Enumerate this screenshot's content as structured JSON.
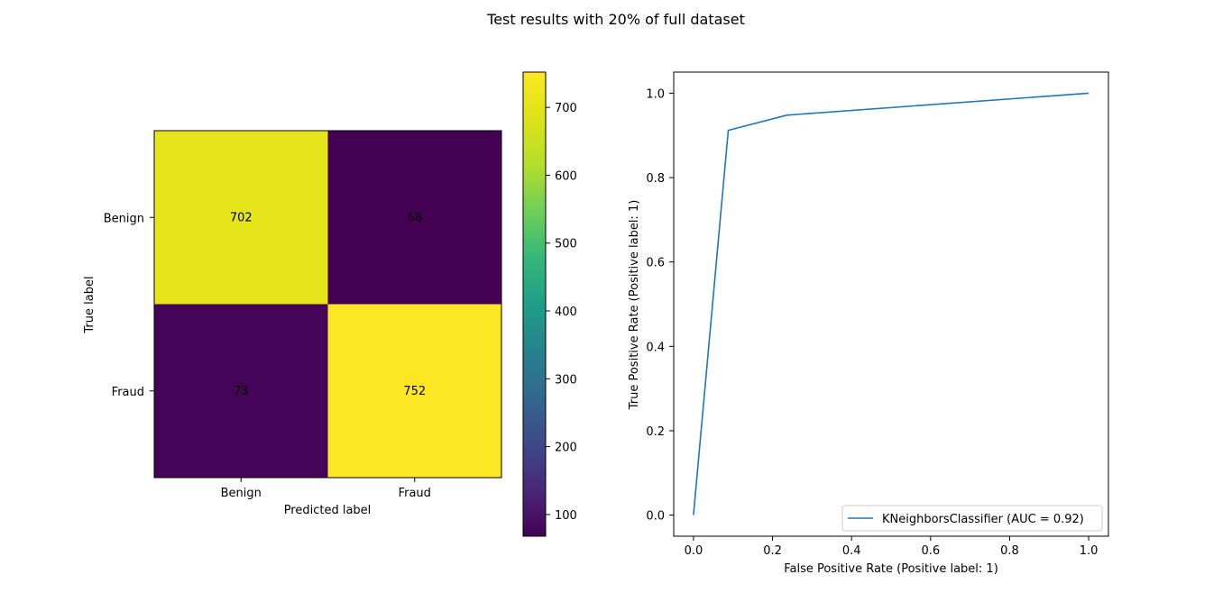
{
  "figure": {
    "title": "Test results with 20% of full dataset"
  },
  "chart_data": [
    {
      "type": "heatmap",
      "xlabel": "Predicted label",
      "ylabel": "True label",
      "x_categories": [
        "Benign",
        "Fraud"
      ],
      "y_categories": [
        "Benign",
        "Fraud"
      ],
      "values": [
        [
          702,
          68
        ],
        [
          73,
          752
        ]
      ],
      "colormap": "viridis",
      "colorbar": {
        "range": [
          68,
          752
        ],
        "ticks": [
          100,
          200,
          300,
          400,
          500,
          600,
          700
        ]
      },
      "text_colors": {
        "on_dark": "#fde725",
        "on_light": "#000000"
      }
    },
    {
      "type": "line",
      "xlabel": "False Positive Rate (Positive label: 1)",
      "ylabel": "True Positive Rate (Positive label: 1)",
      "xlim": [
        -0.05,
        1.05
      ],
      "ylim": [
        -0.05,
        1.05
      ],
      "xticks": [
        0.0,
        0.2,
        0.4,
        0.6,
        0.8,
        1.0
      ],
      "yticks": [
        0.0,
        0.2,
        0.4,
        0.6,
        0.8,
        1.0
      ],
      "grid": false,
      "legend": "lower-right",
      "series": [
        {
          "name": "KNeighborsClassifier (AUC = 0.92)",
          "color": "#1f77b4",
          "x": [
            0.0,
            0.088,
            0.236,
            1.0
          ],
          "y": [
            0.0,
            0.912,
            0.948,
            1.0
          ]
        }
      ]
    }
  ]
}
